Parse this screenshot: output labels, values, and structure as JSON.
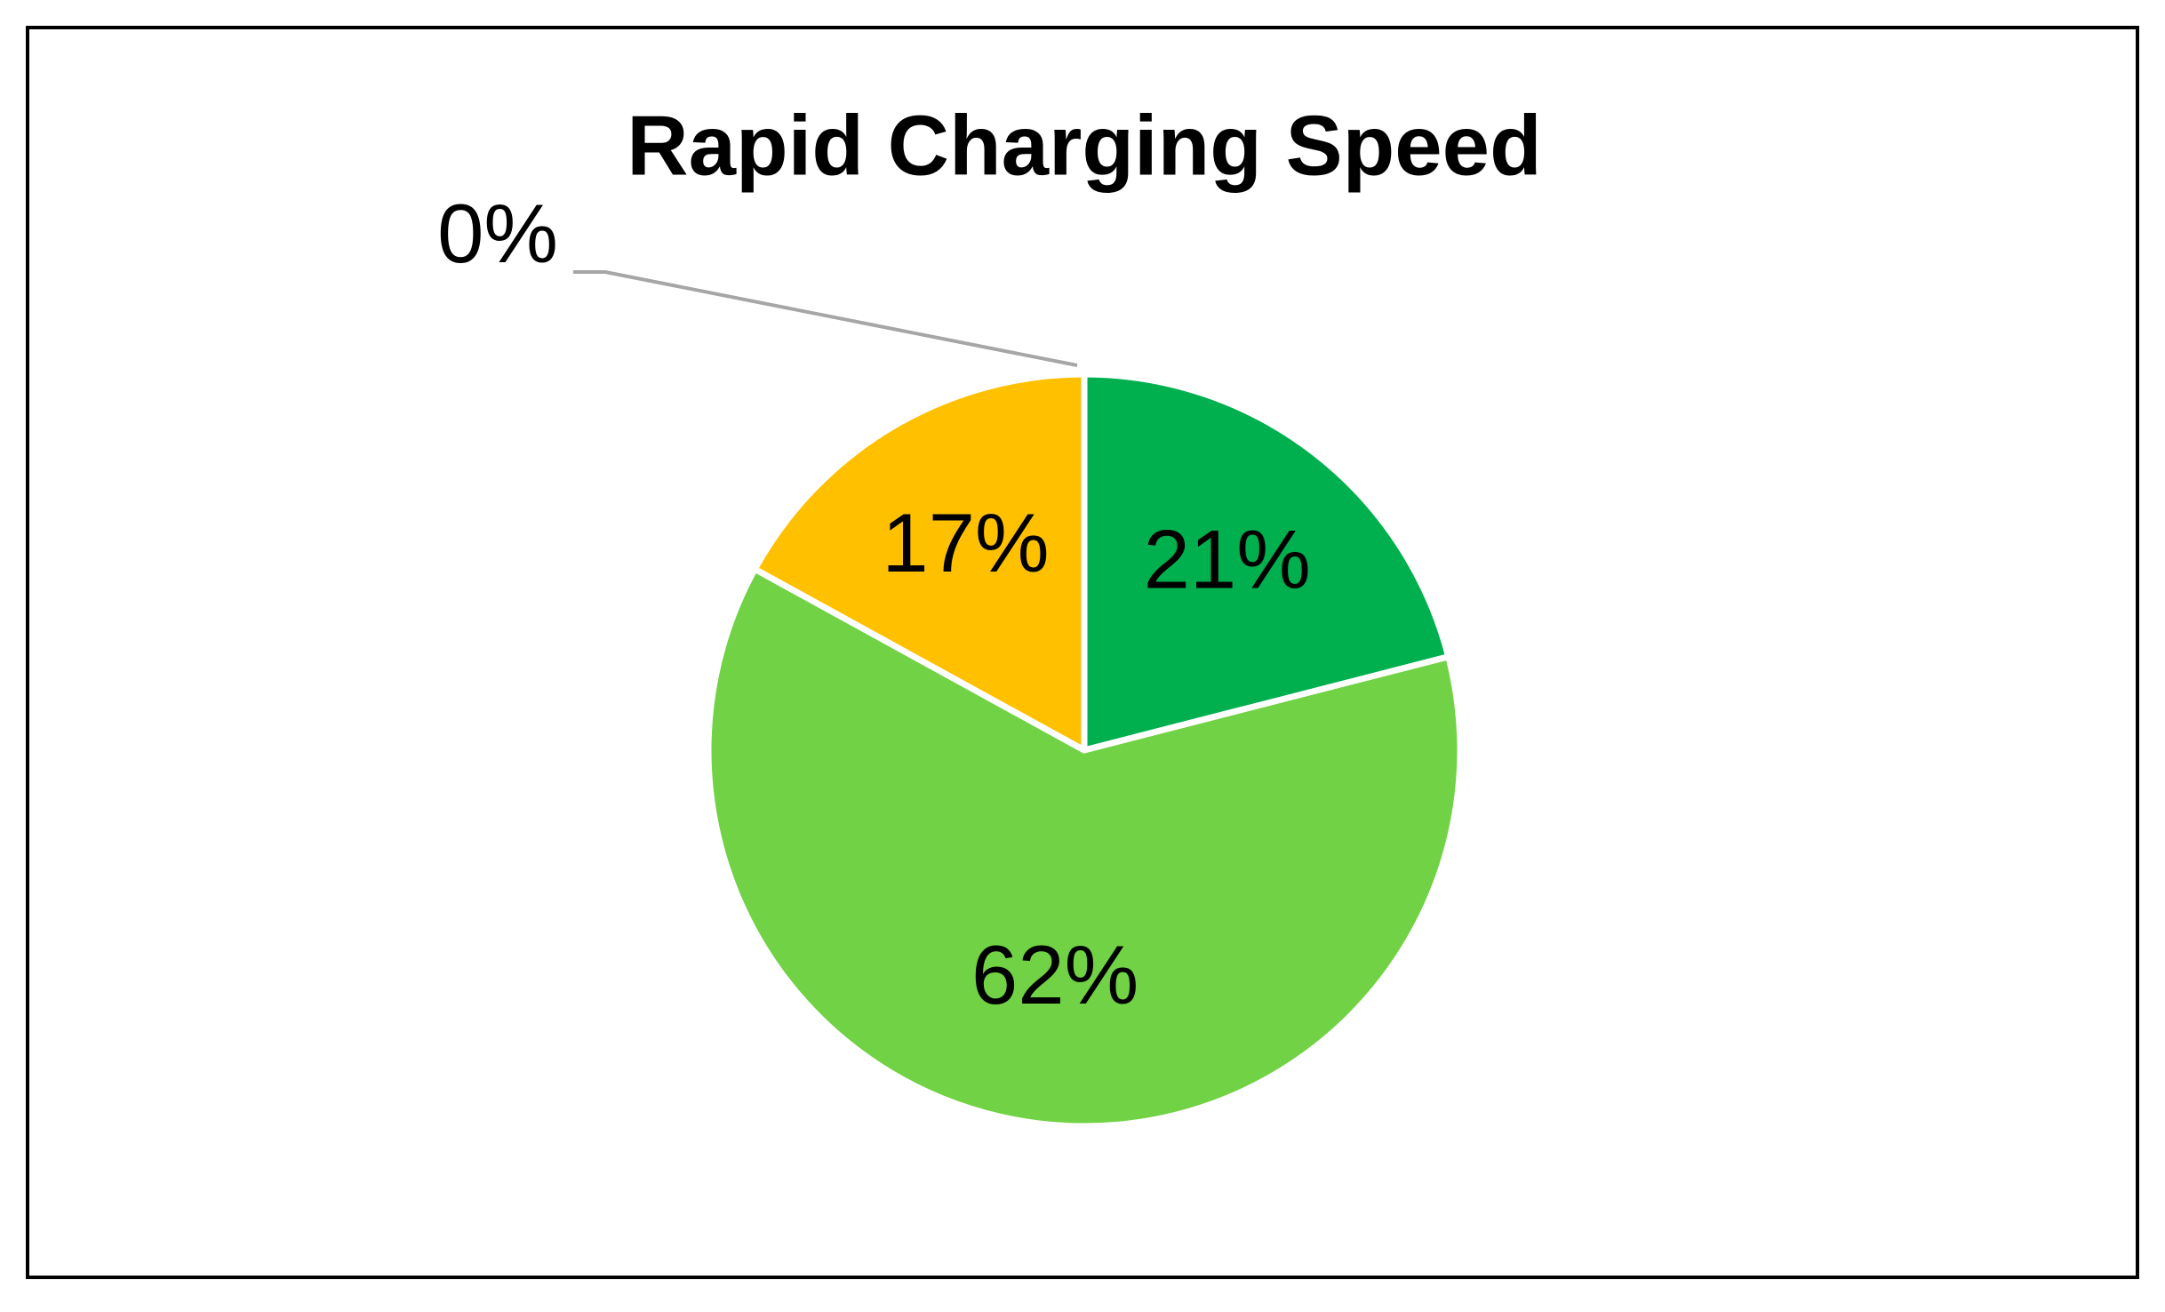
{
  "chart_data": {
    "type": "pie",
    "title": "Rapid Charging Speed",
    "values": [
      21,
      62,
      17,
      0
    ],
    "value_labels": [
      "21%",
      "62%",
      "17%",
      "0%"
    ],
    "colors": [
      "#00b04f",
      "#70d244",
      "#ffc000",
      "#4472c4"
    ]
  }
}
